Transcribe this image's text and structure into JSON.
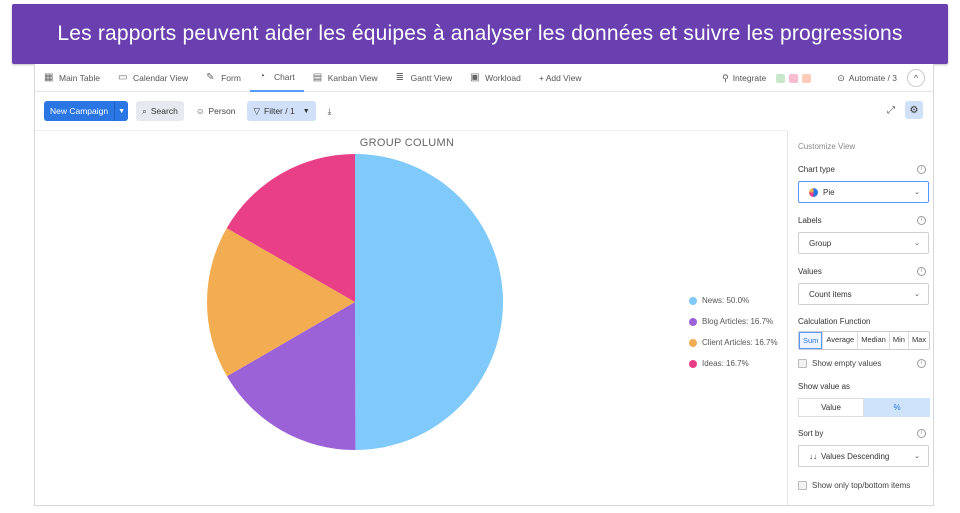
{
  "banner": {
    "text": "Les rapports peuvent aider les équipes à analyser les données et suivre les progressions"
  },
  "tabs": [
    {
      "label": "Main Table",
      "icon": "table-icon"
    },
    {
      "label": "Calendar View",
      "icon": "calendar-icon"
    },
    {
      "label": "Form",
      "icon": "form-icon"
    },
    {
      "label": "Chart",
      "icon": "chart-icon"
    },
    {
      "label": "Kanban View",
      "icon": "kanban-icon"
    },
    {
      "label": "Gantt View",
      "icon": "gantt-icon"
    },
    {
      "label": "Workload",
      "icon": "workload-icon"
    },
    {
      "label": "+ Add View",
      "icon": ""
    }
  ],
  "tabs_right": {
    "integrate": "Integrate",
    "automate": "Automate / 3",
    "collapse": "^"
  },
  "toolbar": {
    "new_campaign": "New Campaign",
    "search": "Search",
    "person": "Person",
    "filter": "Filter / 1"
  },
  "chart_data": {
    "type": "pie",
    "title": "GROUP COLUMN",
    "categories": [
      "News",
      "Blog Articles",
      "Client Articles",
      "Ideas"
    ],
    "values": [
      50.0,
      16.7,
      16.7,
      16.7
    ],
    "legend_labels": [
      "News: 50.0%",
      "Blog Articles: 16.7%",
      "Client Articles: 16.7%",
      "Ideas: 16.7%"
    ],
    "colors": [
      "#80c9fb",
      "#9b62d8",
      "#f2ac52",
      "#e93f86"
    ],
    "legend_position": "right"
  },
  "panel": {
    "title": "Customize View",
    "chart_type_label": "Chart type",
    "chart_type_value": "Pie",
    "labels_label": "Labels",
    "labels_value": "Group",
    "values_label": "Values",
    "values_value": "Count items",
    "calc_label": "Calculation Function",
    "calc_options": [
      "Sum",
      "Average",
      "Median",
      "Min",
      "Max"
    ],
    "calc_selected": "Sum",
    "show_empty": "Show empty values",
    "show_value_as_label": "Show value as",
    "show_value_as_options": [
      "Value",
      "%"
    ],
    "show_value_as_selected": "%",
    "sort_by_label": "Sort by",
    "sort_by_value": "Values Descending",
    "sort_by_icon": "↓↓",
    "show_top_bottom": "Show only top/bottom items"
  }
}
